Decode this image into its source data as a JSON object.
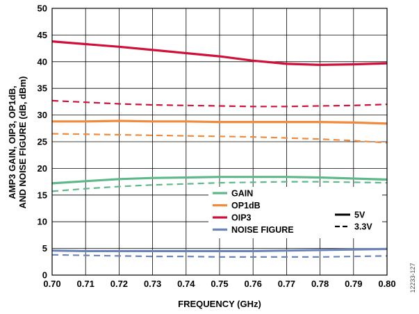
{
  "chart_data": {
    "type": "line",
    "xlabel": "FREQUENCY (GHz)",
    "ylabel_lines": [
      "AMP3 GAIN, OIP3, OP1dB,",
      "AND NOISE FIGURE (dB, dBm)"
    ],
    "xlim": [
      0.7,
      0.8
    ],
    "ylim": [
      0,
      50
    ],
    "x_ticks": [
      "0.70",
      "0.71",
      "0.72",
      "0.73",
      "0.74",
      "0.75",
      "0.76",
      "0.77",
      "0.78",
      "0.79",
      "0.80"
    ],
    "y_ticks": [
      "0",
      "5",
      "10",
      "15",
      "20",
      "25",
      "30",
      "35",
      "40",
      "45",
      "50"
    ],
    "grid": true,
    "x": [
      0.7,
      0.71,
      0.72,
      0.73,
      0.74,
      0.75,
      0.76,
      0.77,
      0.78,
      0.79,
      0.8
    ],
    "series": [
      {
        "name": "GAIN",
        "condition": "5V",
        "color": "#5fb88a",
        "dash": "solid",
        "values": [
          17.2,
          17.6,
          18.0,
          18.2,
          18.3,
          18.4,
          18.4,
          18.4,
          18.3,
          18.1,
          17.9
        ]
      },
      {
        "name": "GAIN",
        "condition": "3.3V",
        "color": "#5fb88a",
        "dash": "dashed",
        "values": [
          15.7,
          16.2,
          16.6,
          16.9,
          17.1,
          17.3,
          17.4,
          17.5,
          17.5,
          17.4,
          17.3
        ]
      },
      {
        "name": "OP1dB",
        "condition": "5V",
        "color": "#f08a3c",
        "dash": "solid",
        "values": [
          28.8,
          28.8,
          28.9,
          28.8,
          28.8,
          28.7,
          28.7,
          28.7,
          28.7,
          28.6,
          28.4
        ]
      },
      {
        "name": "OP1dB",
        "condition": "3.3V",
        "color": "#f08a3c",
        "dash": "dashed",
        "values": [
          26.5,
          26.4,
          26.3,
          26.2,
          26.1,
          26.0,
          25.9,
          25.7,
          25.5,
          25.2,
          24.8
        ]
      },
      {
        "name": "OIP3",
        "condition": "5V",
        "color": "#d0103a",
        "dash": "solid",
        "values": [
          43.8,
          43.3,
          42.8,
          42.2,
          41.6,
          41.0,
          40.2,
          39.6,
          39.4,
          39.5,
          39.7
        ]
      },
      {
        "name": "OIP3",
        "condition": "3.3V",
        "color": "#d0103a",
        "dash": "dashed",
        "values": [
          32.7,
          32.4,
          32.1,
          31.9,
          31.8,
          31.7,
          31.6,
          31.6,
          31.7,
          31.8,
          32.0
        ]
      },
      {
        "name": "NOISE FIGURE",
        "condition": "5V",
        "color": "#6b83b8",
        "dash": "solid",
        "values": [
          4.6,
          4.5,
          4.5,
          4.5,
          4.5,
          4.5,
          4.5,
          4.6,
          4.7,
          4.8,
          4.9
        ]
      },
      {
        "name": "NOISE FIGURE",
        "condition": "3.3V",
        "color": "#6b83b8",
        "dash": "dashed",
        "values": [
          3.8,
          3.7,
          3.6,
          3.5,
          3.5,
          3.4,
          3.4,
          3.4,
          3.4,
          3.5,
          3.6
        ]
      }
    ],
    "legend_series": [
      {
        "label": "GAIN",
        "color": "#5fb88a"
      },
      {
        "label": "OP1dB",
        "color": "#f08a3c"
      },
      {
        "label": "OIP3",
        "color": "#d0103a"
      },
      {
        "label": "NOISE FIGURE",
        "color": "#6b83b8"
      }
    ],
    "legend_styles": [
      {
        "label": "5V",
        "dash": "solid"
      },
      {
        "label": "3.3V",
        "dash": "dashed"
      }
    ],
    "legend_position": "lower-right",
    "figure_id": "12233-127"
  }
}
